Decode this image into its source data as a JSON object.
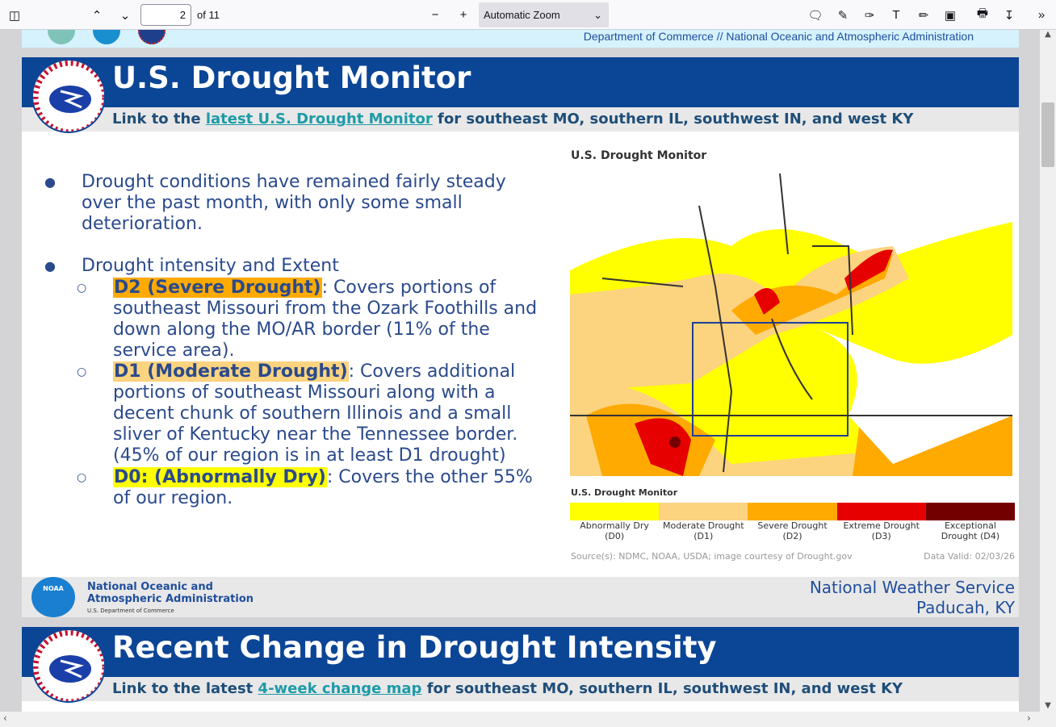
{
  "toolbar": {
    "page_number": "2",
    "page_count": "of 11",
    "zoom": "Automatic Zoom"
  },
  "top_strip": {
    "text": "Department of Commerce  //  National Oceanic and Atmospheric Administration"
  },
  "slide1": {
    "title": "U.S. Drought Monitor",
    "link_prefix": "Link to the ",
    "link_text": "latest U.S. Drought Monitor",
    "link_suffix": " for southeast MO, southern IL, southwest IN, and west KY",
    "bullet1": "Drought conditions have remained fairly steady over the past month, with only some small deterioration.",
    "bullet2": "Drought intensity and Extent",
    "sub1_label": "D2 (Severe Drought)",
    "sub1_text": ": Covers portions of southeast Missouri from the Ozark Foothills and down along the MO/AR border (11% of the service area).",
    "sub2_label": "D1 (Moderate Drought)",
    "sub2_text": ": Covers additional portions of southeast Missouri along with a decent chunk of southern Illinois and a small sliver of Kentucky near the Tennessee border. (45% of our region is in at least D1 drought)",
    "sub3_label": "D0: (Abnormally Dry)",
    "sub3_text": ": Covers the other 55% of our region.",
    "map": {
      "title": "U.S. Drought Monitor",
      "legend_title": "U.S. Drought Monitor",
      "legend": [
        {
          "label": "Abnormally Dry (D0)",
          "color": "#ffff00"
        },
        {
          "label": "Moderate Drought (D1)",
          "color": "#fcd37f"
        },
        {
          "label": "Severe Drought (D2)",
          "color": "#ffaa00"
        },
        {
          "label": "Extreme Drought (D3)",
          "color": "#e60000"
        },
        {
          "label": "Exceptional Drought (D4)",
          "color": "#730000"
        }
      ],
      "source": "Source(s): NDMC, NOAA, USDA; image courtesy of Drought.gov",
      "valid": "Data Valid: 02/03/26"
    },
    "footer_noaa_1": "National Oceanic and",
    "footer_noaa_2": "Atmospheric Administration",
    "footer_noaa_3": "U.S. Department of Commerce",
    "noaa_logo": "NOAA",
    "footer_nws_1": "National Weather Service",
    "footer_nws_2": "Paducah, KY"
  },
  "slide2": {
    "title": "Recent Change in Drought Intensity",
    "link_prefix": "Link to the latest ",
    "link_text": "4-week change map",
    "link_suffix": " for southeast MO, southern IL, southwest IN, and west KY"
  },
  "colors": {
    "header": "#0b4596",
    "link": "#1e9ba8",
    "text": "#2a4a8c"
  }
}
